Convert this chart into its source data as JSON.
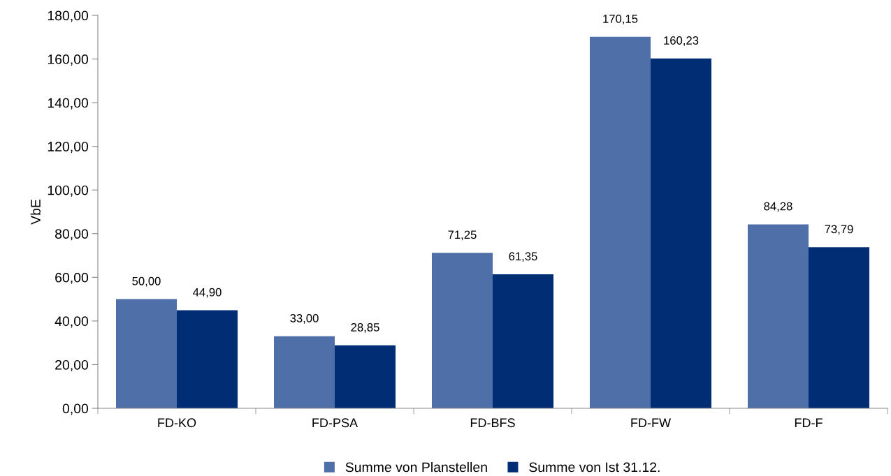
{
  "chart_data": {
    "type": "bar",
    "ylabel": "VbE",
    "categories": [
      "FD-KO",
      "FD-PSA",
      "FD-BFS",
      "FD-FW",
      "FD-F"
    ],
    "series": [
      {
        "name": "Summe von Planstellen",
        "color": "#4f6fa8",
        "values": [
          50.0,
          33.0,
          71.25,
          170.15,
          84.28
        ],
        "value_labels": [
          "50,00",
          "33,00",
          "71,25",
          "170,15",
          "84,28"
        ]
      },
      {
        "name": "Summe von Ist 31.12.",
        "color": "#002d74",
        "values": [
          44.9,
          28.85,
          61.35,
          160.23,
          73.79
        ],
        "value_labels": [
          "44,90",
          "28,85",
          "61,35",
          "160,23",
          "73,79"
        ]
      }
    ],
    "ylim": [
      0,
      180
    ],
    "yticks": [
      {
        "value": 0,
        "label": "0,00"
      },
      {
        "value": 20,
        "label": "20,00"
      },
      {
        "value": 40,
        "label": "40,00"
      },
      {
        "value": 60,
        "label": "60,00"
      },
      {
        "value": 80,
        "label": "80,00"
      },
      {
        "value": 100,
        "label": "100,00"
      },
      {
        "value": 120,
        "label": "120,00"
      },
      {
        "value": 140,
        "label": "140,00"
      },
      {
        "value": 160,
        "label": "160,00"
      },
      {
        "value": 180,
        "label": "180,00"
      }
    ],
    "grid": false,
    "legend": "bottom"
  }
}
